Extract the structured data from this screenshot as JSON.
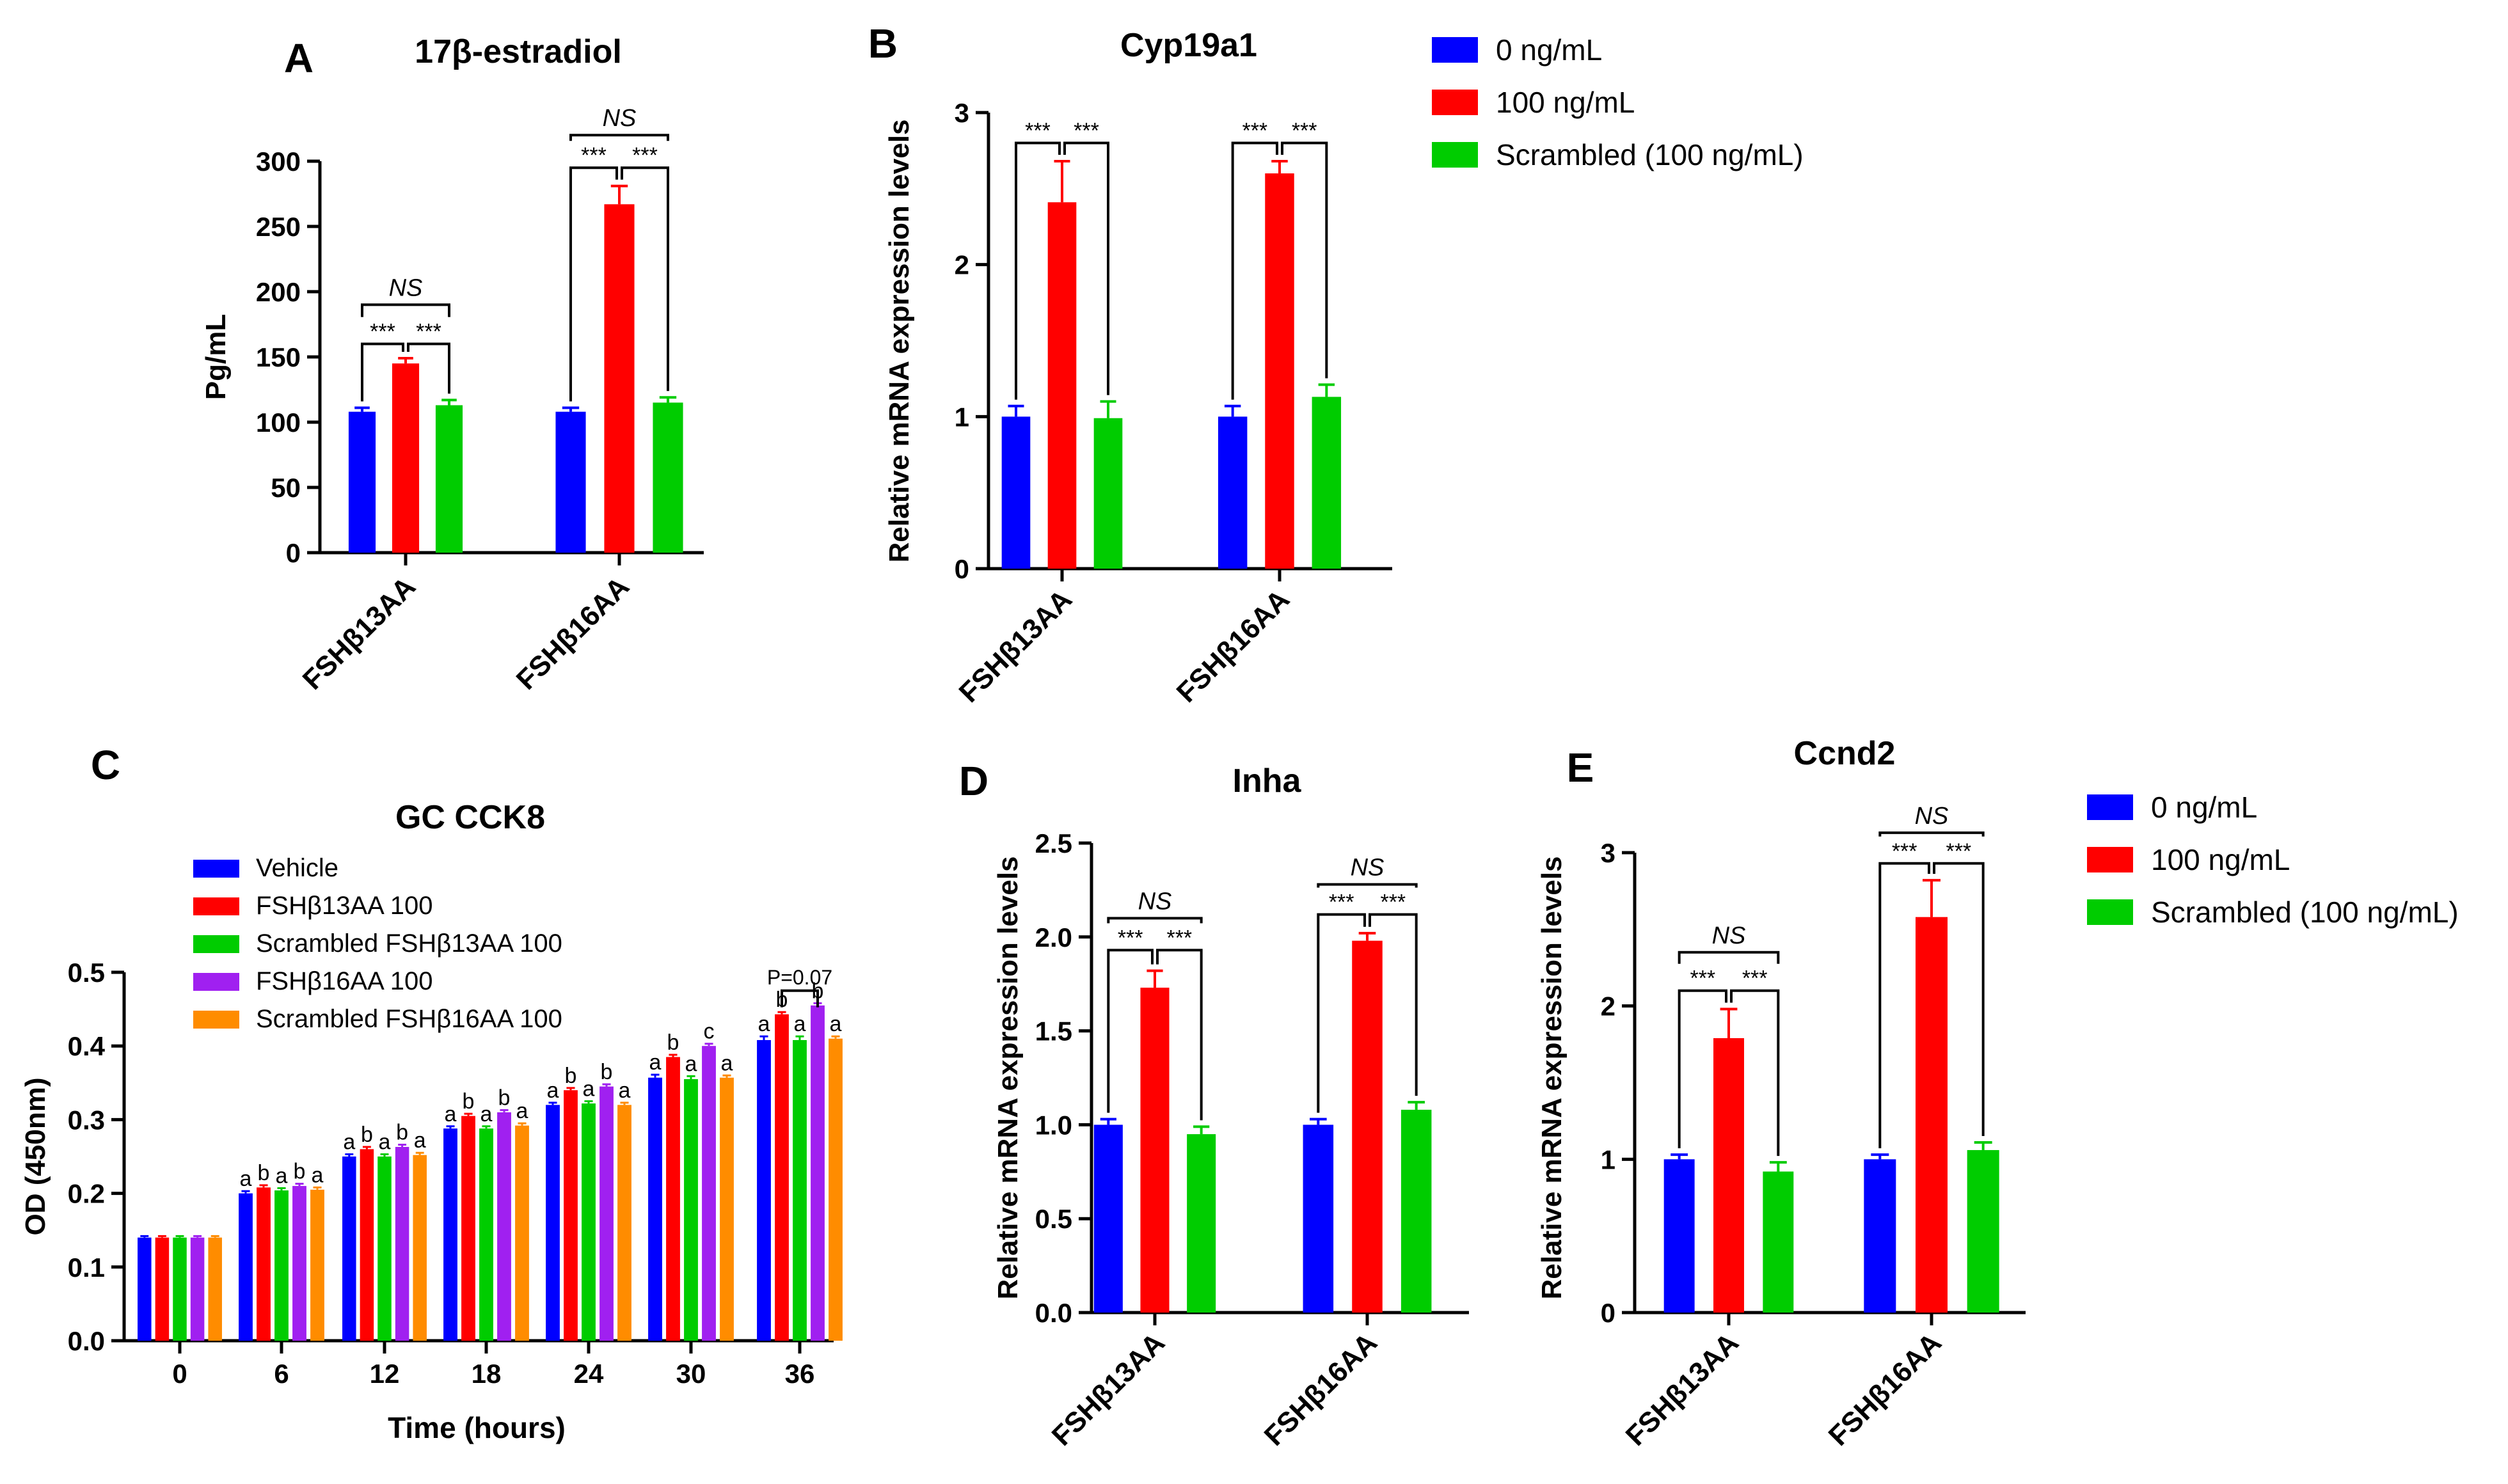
{
  "figure": {
    "colors": {
      "blue": "#0000ff",
      "red": "#ff0000",
      "green": "#00cc00",
      "purple": "#a020f0",
      "orange": "#ff8c00"
    }
  },
  "legend_top": {
    "entries": [
      {
        "label": "0 ng/mL",
        "color": "#0000ff"
      },
      {
        "label": "100 ng/mL",
        "color": "#ff0000"
      },
      {
        "label": "Scrambled (100 ng/mL)",
        "color": "#00cc00"
      }
    ]
  },
  "legend_bottom": {
    "entries": [
      {
        "label": "0 ng/mL",
        "color": "#0000ff"
      },
      {
        "label": "100 ng/mL",
        "color": "#ff0000"
      },
      {
        "label": "Scrambled (100 ng/mL)",
        "color": "#00cc00"
      }
    ]
  },
  "chart_data": [
    {
      "id": "A",
      "panel_label": "A",
      "type": "bar",
      "title": "17β-estradiol",
      "ylabel": "Pg/mL",
      "xlabel": "",
      "ylim": [
        0,
        300
      ],
      "yticks": [
        "0",
        "50",
        "100",
        "150",
        "200",
        "250",
        "300"
      ],
      "categories": [
        "FSHβ13AA",
        "FSHβ16AA"
      ],
      "series": [
        {
          "name": "0 ng/mL",
          "color": "#0000ff",
          "values": [
            108,
            108
          ],
          "errors": [
            3,
            3
          ]
        },
        {
          "name": "100 ng/mL",
          "color": "#ff0000",
          "values": [
            145,
            267
          ],
          "errors": [
            4,
            14
          ]
        },
        {
          "name": "Scrambled (100 ng/mL)",
          "color": "#00cc00",
          "values": [
            113,
            115
          ],
          "errors": [
            4,
            4
          ]
        }
      ],
      "annotations": {
        "pair_label": "***",
        "outer_label": "NS",
        "groups": [
          {
            "pair_y": 160,
            "outer_y": 190
          },
          {
            "pair_y": 295,
            "outer_y": 320
          }
        ]
      }
    },
    {
      "id": "B",
      "panel_label": "B",
      "type": "bar",
      "title": "Cyp19a1",
      "ylabel": "Relative mRNA expression levels",
      "xlabel": "",
      "ylim": [
        0,
        3
      ],
      "yticks": [
        "0",
        "1",
        "2",
        "3"
      ],
      "categories": [
        "FSHβ13AA",
        "FSHβ16AA"
      ],
      "series": [
        {
          "name": "0 ng/mL",
          "color": "#0000ff",
          "values": [
            1.0,
            1.0
          ],
          "errors": [
            0.07,
            0.07
          ]
        },
        {
          "name": "100 ng/mL",
          "color": "#ff0000",
          "values": [
            2.41,
            2.6
          ],
          "errors": [
            0.27,
            0.08
          ]
        },
        {
          "name": "Scrambled (100 ng/mL)",
          "color": "#00cc00",
          "values": [
            0.99,
            1.13
          ],
          "errors": [
            0.11,
            0.08
          ]
        }
      ],
      "annotations": {
        "pair_label": "***",
        "groups": [
          {
            "pair_y": 2.8
          },
          {
            "pair_y": 2.8
          }
        ]
      }
    },
    {
      "id": "C",
      "panel_label": "C",
      "type": "bar",
      "title": "GC CCK8",
      "ylabel": "OD (450nm)",
      "xlabel": "Time (hours)",
      "ylim": [
        0,
        0.5
      ],
      "yticks": [
        "0.0",
        "0.1",
        "0.2",
        "0.3",
        "0.4",
        "0.5"
      ],
      "categories": [
        "0",
        "6",
        "12",
        "18",
        "24",
        "30",
        "36"
      ],
      "series": [
        {
          "name": "Vehicle",
          "color": "#0000ff",
          "values": [
            0.14,
            0.2,
            0.25,
            0.288,
            0.32,
            0.357,
            0.408
          ],
          "errors": [
            0.002,
            0.003,
            0.003,
            0.003,
            0.003,
            0.004,
            0.005
          ]
        },
        {
          "name": "FSHβ13AA 100",
          "color": "#ff0000",
          "values": [
            0.14,
            0.208,
            0.26,
            0.305,
            0.34,
            0.385,
            0.443
          ],
          "errors": [
            0.002,
            0.003,
            0.003,
            0.003,
            0.003,
            0.003,
            0.003
          ]
        },
        {
          "name": "Scrambled FSHβ13AA 100",
          "color": "#00cc00",
          "values": [
            0.14,
            0.204,
            0.25,
            0.288,
            0.322,
            0.355,
            0.408
          ],
          "errors": [
            0.002,
            0.003,
            0.003,
            0.003,
            0.003,
            0.004,
            0.005
          ]
        },
        {
          "name": "FSHβ16AA 100",
          "color": "#a020f0",
          "values": [
            0.14,
            0.21,
            0.263,
            0.31,
            0.345,
            0.4,
            0.455
          ],
          "errors": [
            0.002,
            0.003,
            0.003,
            0.003,
            0.003,
            0.003,
            0.003
          ]
        },
        {
          "name": "Scrambled FSHβ16AA 100",
          "color": "#ff8c00",
          "values": [
            0.14,
            0.205,
            0.252,
            0.292,
            0.32,
            0.357,
            0.41
          ],
          "errors": [
            0.002,
            0.003,
            0.003,
            0.003,
            0.003,
            0.003,
            0.003
          ]
        }
      ],
      "bar_letters": [
        [],
        [
          "a",
          "b",
          "a",
          "b",
          "a"
        ],
        [
          "a",
          "b",
          "a",
          "b",
          "a"
        ],
        [
          "a",
          "b",
          "a",
          "b",
          "a"
        ],
        [
          "a",
          "b",
          "a",
          "b",
          "a"
        ],
        [
          "a",
          "b",
          "a",
          "c",
          "a"
        ],
        [
          "a",
          "b",
          "a",
          "b",
          "a"
        ]
      ],
      "annotations": {
        "p_value": "P=0.07",
        "p_bracket_y": 0.475
      }
    },
    {
      "id": "D",
      "panel_label": "D",
      "type": "bar",
      "title": "Inha",
      "ylabel": "Relative mRNA expression levels",
      "xlabel": "",
      "ylim": [
        0,
        2.5
      ],
      "yticks": [
        "0.0",
        "0.5",
        "1.0",
        "1.5",
        "2.0",
        "2.5"
      ],
      "categories": [
        "FSHβ13AA",
        "FSHβ16AA"
      ],
      "series": [
        {
          "name": "0 ng/mL",
          "color": "#0000ff",
          "values": [
            1.0,
            1.0
          ],
          "errors": [
            0.03,
            0.03
          ]
        },
        {
          "name": "100 ng/mL",
          "color": "#ff0000",
          "values": [
            1.73,
            1.98
          ],
          "errors": [
            0.09,
            0.04
          ]
        },
        {
          "name": "Scrambled (100 ng/mL)",
          "color": "#00cc00",
          "values": [
            0.95,
            1.08
          ],
          "errors": [
            0.04,
            0.04
          ]
        }
      ],
      "annotations": {
        "pair_label": "***",
        "outer_label": "NS",
        "groups": [
          {
            "pair_y": 1.93,
            "outer_y": 2.1
          },
          {
            "pair_y": 2.12,
            "outer_y": 2.28
          }
        ]
      }
    },
    {
      "id": "E",
      "panel_label": "E",
      "type": "bar",
      "title": "Ccnd2",
      "ylabel": "Relative mRNA expression levels",
      "xlabel": "",
      "ylim": [
        0,
        3
      ],
      "yticks": [
        "0",
        "1",
        "2",
        "3"
      ],
      "categories": [
        "FSHβ13AA",
        "FSHβ16AA"
      ],
      "series": [
        {
          "name": "0 ng/mL",
          "color": "#0000ff",
          "values": [
            1.0,
            1.0
          ],
          "errors": [
            0.03,
            0.03
          ]
        },
        {
          "name": "100 ng/mL",
          "color": "#ff0000",
          "values": [
            1.79,
            2.58
          ],
          "errors": [
            0.19,
            0.24
          ]
        },
        {
          "name": "Scrambled (100 ng/mL)",
          "color": "#00cc00",
          "values": [
            0.92,
            1.06
          ],
          "errors": [
            0.06,
            0.05
          ]
        }
      ],
      "annotations": {
        "pair_label": "***",
        "outer_label": "NS",
        "groups": [
          {
            "pair_y": 2.1,
            "outer_y": 2.35
          },
          {
            "pair_y": 2.93,
            "outer_y": 3.13
          }
        ]
      }
    }
  ]
}
